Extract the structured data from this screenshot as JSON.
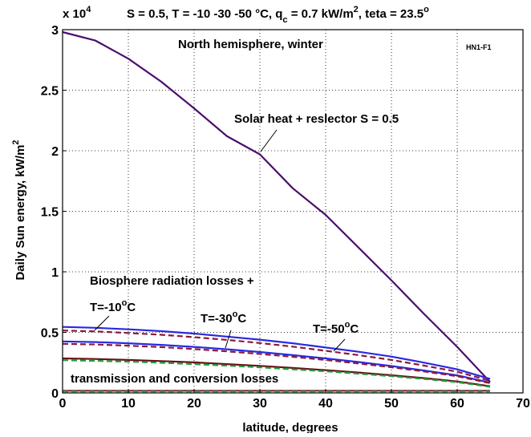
{
  "chart_data": {
    "type": "line",
    "title": "S = 0.5, T = -10 -30 -50 °C, q",
    "title_sub": "c",
    "title_rest": " = 0.7 kW/m",
    "title_sup": "2",
    "title_end": ", teta = 23.5",
    "title_deg": "o",
    "xlabel": "latitude, degrees",
    "ylabel": "Daily Sun energy, kW/m",
    "ylabel_sup": "2",
    "y_multiplier_base": "x 10",
    "y_multiplier_exp": "4",
    "xlim": [
      0,
      70
    ],
    "ylim": [
      0,
      30000
    ],
    "x_ticks": [
      0,
      10,
      20,
      30,
      40,
      50,
      60,
      70
    ],
    "x_tick_labels": [
      "0",
      "10",
      "20",
      "30",
      "40",
      "50",
      "60",
      "70"
    ],
    "y_ticks": [
      0,
      5000,
      10000,
      15000,
      20000,
      25000,
      30000
    ],
    "y_tick_labels": [
      "0",
      "0.5",
      "1",
      "1.5",
      "2",
      "2.5",
      "3"
    ],
    "grid": true,
    "annotations": {
      "hemisphere": "North hemisphere, winter",
      "code": "HN1-F1",
      "solar": "Solar heat + reslector S = 0.5",
      "biosphere": "Biosphere radiation losses +",
      "transmission": "transmission and conversion losses",
      "t10": "T=-10",
      "t30": "T=-30",
      "t50": "T=-50",
      "deg": "o",
      "unit": "C"
    },
    "series": [
      {
        "color": "#4b0f6e",
        "style": "solid",
        "x": [
          0,
          5,
          10,
          15,
          20,
          25,
          30,
          35,
          40,
          45,
          50,
          55,
          60,
          65
        ],
        "values": [
          29800,
          29100,
          27600,
          25700,
          23500,
          21200,
          19700,
          16900,
          14700,
          12000,
          9300,
          6500,
          3800,
          900
        ]
      },
      {
        "color": "#2a2ae0",
        "style": "solid",
        "x": [
          0,
          5,
          10,
          15,
          20,
          25,
          30,
          35,
          40,
          45,
          50,
          55,
          60,
          65
        ],
        "values": [
          5450,
          5380,
          5250,
          5100,
          4900,
          4650,
          4400,
          4100,
          3750,
          3400,
          3000,
          2500,
          1950,
          1150
        ]
      },
      {
        "color": "#8b1a3a",
        "style": "dashed",
        "x": [
          0,
          5,
          10,
          15,
          20,
          25,
          30,
          35,
          40,
          45,
          50,
          55,
          60,
          65
        ],
        "values": [
          5150,
          5080,
          4950,
          4800,
          4600,
          4380,
          4120,
          3820,
          3480,
          3120,
          2720,
          2250,
          1750,
          1000
        ]
      },
      {
        "color": "#2a2ae0",
        "style": "solid",
        "x": [
          0,
          5,
          10,
          15,
          20,
          25,
          30,
          35,
          40,
          45,
          50,
          55,
          60,
          65
        ],
        "values": [
          4250,
          4200,
          4100,
          3970,
          3800,
          3600,
          3380,
          3120,
          2850,
          2550,
          2220,
          1850,
          1450,
          850
        ]
      },
      {
        "color": "#8b1a3a",
        "style": "dashed",
        "x": [
          0,
          5,
          10,
          15,
          20,
          25,
          30,
          35,
          40,
          45,
          50,
          55,
          60,
          65
        ],
        "values": [
          4050,
          4000,
          3900,
          3780,
          3620,
          3430,
          3220,
          2980,
          2720,
          2430,
          2120,
          1770,
          1380,
          800
        ]
      },
      {
        "color": "#6b0f1a",
        "style": "solid",
        "x": [
          0,
          5,
          10,
          15,
          20,
          25,
          30,
          35,
          40,
          45,
          50,
          55,
          60,
          65
        ],
        "values": [
          2850,
          2800,
          2720,
          2630,
          2520,
          2380,
          2230,
          2060,
          1880,
          1680,
          1460,
          1220,
          950,
          550
        ]
      },
      {
        "color": "#1e9e3a",
        "style": "dashed",
        "x": [
          0,
          5,
          10,
          15,
          20,
          25,
          30,
          35,
          40,
          45,
          50,
          55,
          60,
          65
        ],
        "values": [
          2700,
          2650,
          2580,
          2490,
          2380,
          2250,
          2110,
          1950,
          1780,
          1590,
          1380,
          1150,
          890,
          500
        ]
      },
      {
        "color": "#8b1a3a",
        "style": "solid",
        "x": [
          0,
          65
        ],
        "values": [
          180,
          180
        ]
      },
      {
        "color": "#1e9e3a",
        "style": "dashed",
        "x": [
          0,
          65
        ],
        "values": [
          120,
          120
        ]
      }
    ]
  }
}
